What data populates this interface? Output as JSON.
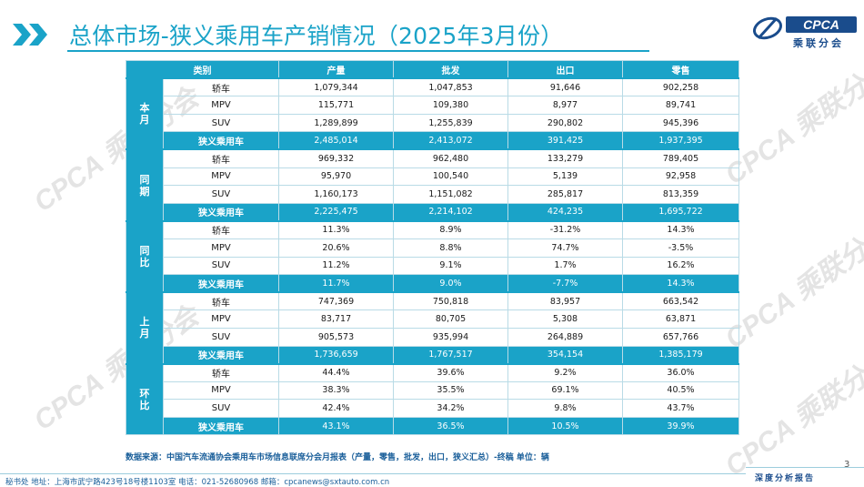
{
  "title": "总体市场-狭义乘用车产销情况（2025年3月份）",
  "logo": {
    "text": "CPCA",
    "subtext": "乘联分会"
  },
  "watermark_text": "CPCA 乘联分会",
  "table": {
    "headers": [
      "类别",
      "产量",
      "批发",
      "出口",
      "零售"
    ],
    "groups": [
      {
        "label": "本月",
        "rows": [
          {
            "label": "轿车",
            "values": [
              "1,079,344",
              "1,047,853",
              "91,646",
              "902,258"
            ]
          },
          {
            "label": "MPV",
            "values": [
              "115,771",
              "109,380",
              "8,977",
              "89,741"
            ]
          },
          {
            "label": "SUV",
            "values": [
              "1,289,899",
              "1,255,839",
              "290,802",
              "945,396"
            ]
          },
          {
            "label": "狭义乘用车",
            "values": [
              "2,485,014",
              "2,413,072",
              "391,425",
              "1,937,395"
            ],
            "total": true
          }
        ]
      },
      {
        "label": "同期",
        "rows": [
          {
            "label": "轿车",
            "values": [
              "969,332",
              "962,480",
              "133,279",
              "789,405"
            ]
          },
          {
            "label": "MPV",
            "values": [
              "95,970",
              "100,540",
              "5,139",
              "92,958"
            ]
          },
          {
            "label": "SUV",
            "values": [
              "1,160,173",
              "1,151,082",
              "285,817",
              "813,359"
            ]
          },
          {
            "label": "狭义乘用车",
            "values": [
              "2,225,475",
              "2,214,102",
              "424,235",
              "1,695,722"
            ],
            "total": true
          }
        ]
      },
      {
        "label": "同比",
        "rows": [
          {
            "label": "轿车",
            "values": [
              "11.3%",
              "8.9%",
              "-31.2%",
              "14.3%"
            ]
          },
          {
            "label": "MPV",
            "values": [
              "20.6%",
              "8.8%",
              "74.7%",
              "-3.5%"
            ]
          },
          {
            "label": "SUV",
            "values": [
              "11.2%",
              "9.1%",
              "1.7%",
              "16.2%"
            ]
          },
          {
            "label": "狭义乘用车",
            "values": [
              "11.7%",
              "9.0%",
              "-7.7%",
              "14.3%"
            ],
            "total": true
          }
        ]
      },
      {
        "label": "上月",
        "rows": [
          {
            "label": "轿车",
            "values": [
              "747,369",
              "750,818",
              "83,957",
              "663,542"
            ]
          },
          {
            "label": "MPV",
            "values": [
              "83,717",
              "80,705",
              "5,308",
              "63,871"
            ]
          },
          {
            "label": "SUV",
            "values": [
              "905,573",
              "935,994",
              "264,889",
              "657,766"
            ]
          },
          {
            "label": "狭义乘用车",
            "values": [
              "1,736,659",
              "1,767,517",
              "354,154",
              "1,385,179"
            ],
            "total": true
          }
        ]
      },
      {
        "label": "环比",
        "rows": [
          {
            "label": "轿车",
            "values": [
              "44.4%",
              "39.6%",
              "9.2%",
              "36.0%"
            ]
          },
          {
            "label": "MPV",
            "values": [
              "38.3%",
              "35.5%",
              "69.1%",
              "40.5%"
            ]
          },
          {
            "label": "SUV",
            "values": [
              "42.4%",
              "34.2%",
              "9.8%",
              "43.7%"
            ]
          },
          {
            "label": "狭义乘用车",
            "values": [
              "43.1%",
              "36.5%",
              "10.5%",
              "39.9%"
            ],
            "total": true
          }
        ]
      }
    ]
  },
  "source_note": "数据来源：中国汽车流通协会乘用车市场信息联席分会月报表（产量，零售，批发，出口，狭义汇总）-终稿    单位：辆",
  "footer": {
    "contact": "秘书处   地址：上海市武宁路423号18号楼1103室  电话：021-52680968   邮箱：cpcanews@sxtauto.com.cn",
    "tag": "深度分析报告",
    "page_number": "3"
  },
  "colors": {
    "accent": "#1aa3c8",
    "brand": "#1a4c8c"
  }
}
